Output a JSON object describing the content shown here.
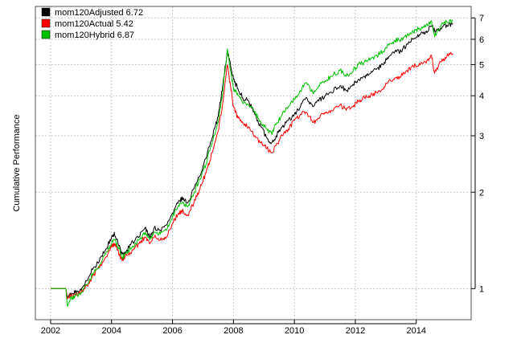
{
  "chart_data": {
    "type": "line",
    "title": "",
    "xlabel": "",
    "ylabel": "Cumulative Performance",
    "y_scale": "log",
    "xlim": [
      2001.5,
      2015.8
    ],
    "ylim": [
      0.8,
      7.6
    ],
    "x_ticks": [
      2002,
      2004,
      2006,
      2008,
      2010,
      2012,
      2014
    ],
    "y_ticks": [
      1,
      2,
      3,
      4,
      5,
      6,
      7
    ],
    "grid": true,
    "legend_position": "top-left",
    "series": [
      {
        "name": "mom120Adjusted 6.72",
        "color": "#000000",
        "points": [
          [
            2002.0,
            1.0
          ],
          [
            2002.5,
            1.0
          ],
          [
            2002.55,
            0.94
          ],
          [
            2002.65,
            0.96
          ],
          [
            2002.8,
            0.97
          ],
          [
            2003.0,
            0.99
          ],
          [
            2003.2,
            1.06
          ],
          [
            2003.4,
            1.16
          ],
          [
            2003.6,
            1.22
          ],
          [
            2003.8,
            1.32
          ],
          [
            2004.0,
            1.45
          ],
          [
            2004.1,
            1.48
          ],
          [
            2004.2,
            1.4
          ],
          [
            2004.35,
            1.28
          ],
          [
            2004.5,
            1.32
          ],
          [
            2004.7,
            1.4
          ],
          [
            2004.9,
            1.45
          ],
          [
            2005.1,
            1.55
          ],
          [
            2005.25,
            1.45
          ],
          [
            2005.4,
            1.55
          ],
          [
            2005.6,
            1.52
          ],
          [
            2005.8,
            1.58
          ],
          [
            2006.0,
            1.72
          ],
          [
            2006.2,
            1.88
          ],
          [
            2006.35,
            1.92
          ],
          [
            2006.5,
            1.85
          ],
          [
            2006.7,
            2.05
          ],
          [
            2006.9,
            2.25
          ],
          [
            2007.1,
            2.55
          ],
          [
            2007.3,
            2.95
          ],
          [
            2007.5,
            3.45
          ],
          [
            2007.65,
            4.3
          ],
          [
            2007.8,
            5.5
          ],
          [
            2007.9,
            5.0
          ],
          [
            2008.0,
            4.5
          ],
          [
            2008.15,
            4.2
          ],
          [
            2008.3,
            3.95
          ],
          [
            2008.5,
            3.85
          ],
          [
            2008.7,
            3.5
          ],
          [
            2008.9,
            3.2
          ],
          [
            2009.1,
            2.95
          ],
          [
            2009.25,
            2.85
          ],
          [
            2009.4,
            3.0
          ],
          [
            2009.6,
            3.2
          ],
          [
            2009.8,
            3.35
          ],
          [
            2010.0,
            3.5
          ],
          [
            2010.2,
            3.7
          ],
          [
            2010.4,
            3.95
          ],
          [
            2010.6,
            3.7
          ],
          [
            2010.8,
            3.85
          ],
          [
            2011.0,
            4.0
          ],
          [
            2011.2,
            4.1
          ],
          [
            2011.5,
            4.3
          ],
          [
            2011.7,
            4.15
          ],
          [
            2011.9,
            4.3
          ],
          [
            2012.1,
            4.5
          ],
          [
            2012.3,
            4.6
          ],
          [
            2012.5,
            4.7
          ],
          [
            2012.7,
            4.85
          ],
          [
            2012.9,
            5.0
          ],
          [
            2013.1,
            5.3
          ],
          [
            2013.3,
            5.5
          ],
          [
            2013.5,
            5.5
          ],
          [
            2013.7,
            5.8
          ],
          [
            2013.9,
            6.0
          ],
          [
            2014.1,
            6.2
          ],
          [
            2014.3,
            6.3
          ],
          [
            2014.5,
            6.6
          ],
          [
            2014.6,
            6.4
          ],
          [
            2014.8,
            6.5
          ],
          [
            2015.0,
            6.65
          ],
          [
            2015.2,
            6.72
          ]
        ]
      },
      {
        "name": "mom120Actual 5.42",
        "color": "#ff0000",
        "points": [
          [
            2002.0,
            1.0
          ],
          [
            2002.5,
            1.0
          ],
          [
            2002.55,
            0.93
          ],
          [
            2002.65,
            0.95
          ],
          [
            2002.8,
            0.96
          ],
          [
            2003.0,
            0.97
          ],
          [
            2003.2,
            1.02
          ],
          [
            2003.4,
            1.1
          ],
          [
            2003.6,
            1.16
          ],
          [
            2003.8,
            1.25
          ],
          [
            2004.0,
            1.35
          ],
          [
            2004.1,
            1.38
          ],
          [
            2004.2,
            1.32
          ],
          [
            2004.35,
            1.22
          ],
          [
            2004.5,
            1.27
          ],
          [
            2004.7,
            1.32
          ],
          [
            2004.9,
            1.38
          ],
          [
            2005.1,
            1.45
          ],
          [
            2005.25,
            1.38
          ],
          [
            2005.4,
            1.45
          ],
          [
            2005.6,
            1.42
          ],
          [
            2005.8,
            1.45
          ],
          [
            2006.0,
            1.6
          ],
          [
            2006.2,
            1.72
          ],
          [
            2006.35,
            1.75
          ],
          [
            2006.5,
            1.7
          ],
          [
            2006.7,
            1.85
          ],
          [
            2006.9,
            2.05
          ],
          [
            2007.1,
            2.3
          ],
          [
            2007.3,
            2.65
          ],
          [
            2007.5,
            3.1
          ],
          [
            2007.65,
            3.8
          ],
          [
            2007.8,
            5.0
          ],
          [
            2007.9,
            4.3
          ],
          [
            2008.0,
            3.7
          ],
          [
            2008.15,
            3.4
          ],
          [
            2008.3,
            3.3
          ],
          [
            2008.5,
            3.2
          ],
          [
            2008.7,
            3.0
          ],
          [
            2008.9,
            2.85
          ],
          [
            2009.1,
            2.75
          ],
          [
            2009.25,
            2.65
          ],
          [
            2009.4,
            2.8
          ],
          [
            2009.6,
            3.0
          ],
          [
            2009.8,
            3.15
          ],
          [
            2010.0,
            3.35
          ],
          [
            2010.2,
            3.5
          ],
          [
            2010.4,
            3.55
          ],
          [
            2010.6,
            3.3
          ],
          [
            2010.8,
            3.4
          ],
          [
            2011.0,
            3.55
          ],
          [
            2011.2,
            3.6
          ],
          [
            2011.5,
            3.75
          ],
          [
            2011.7,
            3.6
          ],
          [
            2011.9,
            3.7
          ],
          [
            2012.1,
            3.85
          ],
          [
            2012.3,
            3.95
          ],
          [
            2012.5,
            4.0
          ],
          [
            2012.7,
            4.1
          ],
          [
            2012.9,
            4.2
          ],
          [
            2013.1,
            4.45
          ],
          [
            2013.3,
            4.55
          ],
          [
            2013.5,
            4.6
          ],
          [
            2013.7,
            4.8
          ],
          [
            2013.9,
            4.95
          ],
          [
            2014.1,
            5.05
          ],
          [
            2014.3,
            5.1
          ],
          [
            2014.5,
            5.35
          ],
          [
            2014.6,
            4.7
          ],
          [
            2014.8,
            5.1
          ],
          [
            2015.0,
            5.3
          ],
          [
            2015.2,
            5.42
          ]
        ]
      },
      {
        "name": "mom120Hybrid 6.87",
        "color": "#00c000",
        "points": [
          [
            2002.0,
            1.0
          ],
          [
            2002.5,
            1.0
          ],
          [
            2002.55,
            0.88
          ],
          [
            2002.65,
            0.93
          ],
          [
            2002.8,
            0.95
          ],
          [
            2003.0,
            0.97
          ],
          [
            2003.2,
            1.03
          ],
          [
            2003.4,
            1.12
          ],
          [
            2003.6,
            1.18
          ],
          [
            2003.8,
            1.28
          ],
          [
            2004.0,
            1.38
          ],
          [
            2004.1,
            1.42
          ],
          [
            2004.2,
            1.35
          ],
          [
            2004.35,
            1.25
          ],
          [
            2004.5,
            1.3
          ],
          [
            2004.7,
            1.36
          ],
          [
            2004.9,
            1.42
          ],
          [
            2005.1,
            1.5
          ],
          [
            2005.25,
            1.42
          ],
          [
            2005.4,
            1.5
          ],
          [
            2005.6,
            1.48
          ],
          [
            2005.8,
            1.52
          ],
          [
            2006.0,
            1.68
          ],
          [
            2006.2,
            1.82
          ],
          [
            2006.35,
            1.85
          ],
          [
            2006.5,
            1.8
          ],
          [
            2006.7,
            1.98
          ],
          [
            2006.9,
            2.2
          ],
          [
            2007.1,
            2.45
          ],
          [
            2007.3,
            2.85
          ],
          [
            2007.5,
            3.3
          ],
          [
            2007.65,
            4.1
          ],
          [
            2007.8,
            5.6
          ],
          [
            2007.9,
            4.8
          ],
          [
            2008.0,
            4.2
          ],
          [
            2008.15,
            4.0
          ],
          [
            2008.3,
            3.8
          ],
          [
            2008.5,
            3.75
          ],
          [
            2008.7,
            3.55
          ],
          [
            2008.9,
            3.3
          ],
          [
            2009.1,
            3.15
          ],
          [
            2009.25,
            3.05
          ],
          [
            2009.4,
            3.25
          ],
          [
            2009.6,
            3.5
          ],
          [
            2009.8,
            3.7
          ],
          [
            2010.0,
            3.9
          ],
          [
            2010.2,
            4.15
          ],
          [
            2010.4,
            4.4
          ],
          [
            2010.6,
            4.1
          ],
          [
            2010.8,
            4.3
          ],
          [
            2011.0,
            4.45
          ],
          [
            2011.2,
            4.6
          ],
          [
            2011.5,
            4.8
          ],
          [
            2011.7,
            4.6
          ],
          [
            2011.9,
            4.75
          ],
          [
            2012.1,
            5.0
          ],
          [
            2012.3,
            5.1
          ],
          [
            2012.5,
            5.2
          ],
          [
            2012.7,
            5.35
          ],
          [
            2012.9,
            5.5
          ],
          [
            2013.1,
            5.75
          ],
          [
            2013.3,
            5.95
          ],
          [
            2013.5,
            6.0
          ],
          [
            2013.7,
            6.2
          ],
          [
            2013.9,
            6.35
          ],
          [
            2014.1,
            6.5
          ],
          [
            2014.3,
            6.55
          ],
          [
            2014.5,
            6.85
          ],
          [
            2014.6,
            6.1
          ],
          [
            2014.8,
            6.6
          ],
          [
            2015.0,
            6.8
          ],
          [
            2015.2,
            6.87
          ]
        ]
      }
    ]
  }
}
